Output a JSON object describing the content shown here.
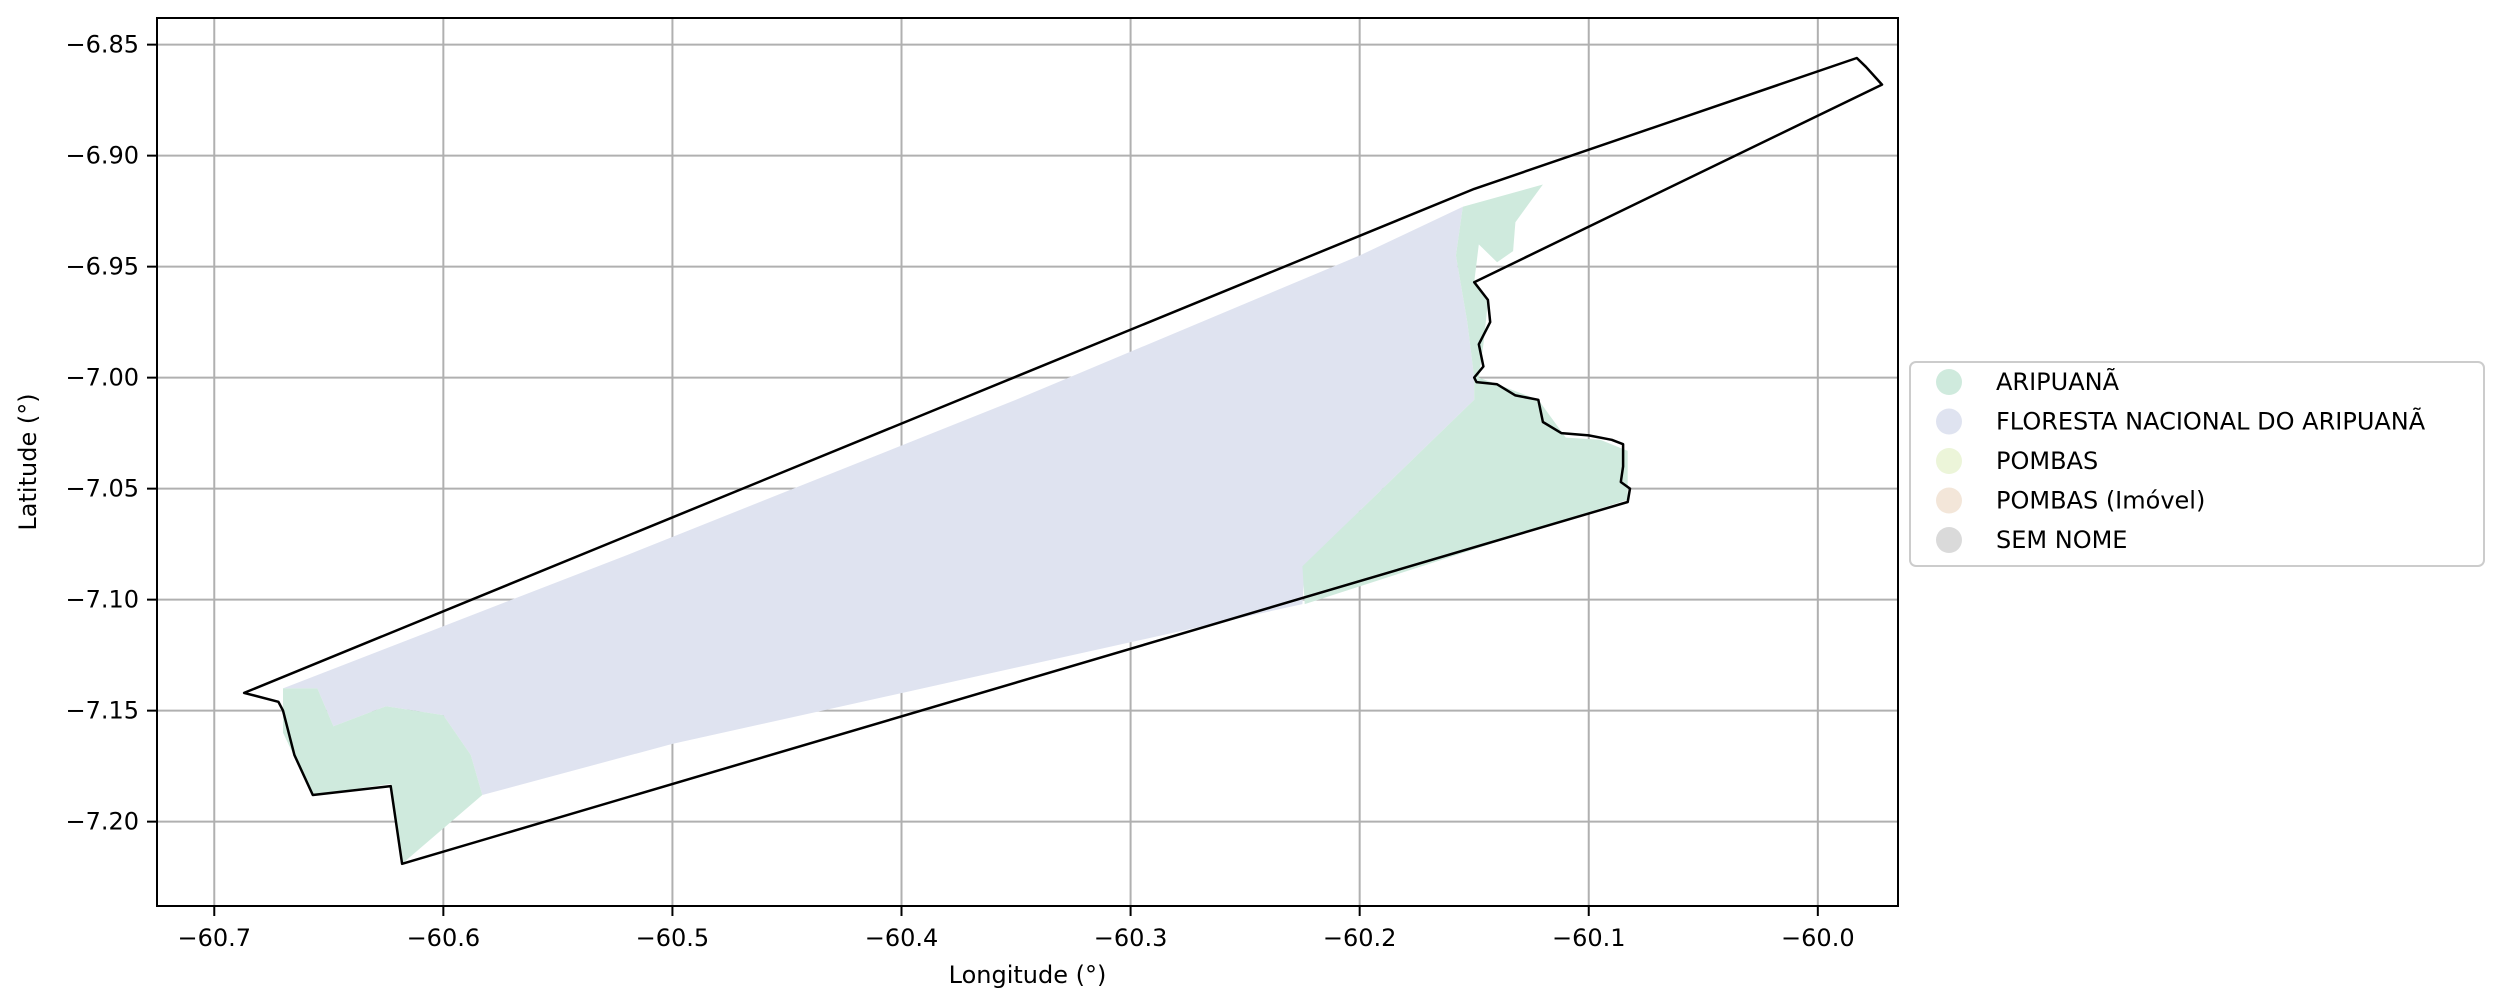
{
  "chart_data": {
    "type": "map",
    "xlabel": "Longitude (°)",
    "ylabel": "Latitude (°)",
    "xlim": [
      -60.725,
      -59.965
    ],
    "ylim": [
      -7.238,
      -6.838
    ],
    "xticks": [
      {
        "value": -60.7,
        "label": "−60.7"
      },
      {
        "value": -60.6,
        "label": "−60.6"
      },
      {
        "value": -60.5,
        "label": "−60.5"
      },
      {
        "value": -60.4,
        "label": "−60.4"
      },
      {
        "value": -60.3,
        "label": "−60.3"
      },
      {
        "value": -60.2,
        "label": "−60.2"
      },
      {
        "value": -60.1,
        "label": "−60.1"
      },
      {
        "value": -60.0,
        "label": "−60.0"
      }
    ],
    "yticks": [
      {
        "value": -6.85,
        "label": "−6.85"
      },
      {
        "value": -6.9,
        "label": "−6.90"
      },
      {
        "value": -6.95,
        "label": "−6.95"
      },
      {
        "value": -7.0,
        "label": "−7.00"
      },
      {
        "value": -7.05,
        "label": "−7.05"
      },
      {
        "value": -7.1,
        "label": "−7.10"
      },
      {
        "value": -7.15,
        "label": "−7.15"
      },
      {
        "value": -7.2,
        "label": "−7.20"
      }
    ],
    "grid": true,
    "legend_position": "right",
    "legend": [
      {
        "label": "ARIPUANÃ",
        "color": "#cfeadd"
      },
      {
        "label": "FLORESTA NACIONAL DO ARIPUANÃ",
        "color": "#dfe3f0"
      },
      {
        "label": "POMBAS",
        "color": "#ecf5d9"
      },
      {
        "label": "POMBAS (Imóvel)",
        "color": "#f3e6d9"
      },
      {
        "label": "SEM NOME",
        "color": "#dadada"
      }
    ],
    "boundary_color": "#000000",
    "layers": [
      {
        "name": "FLORESTA NACIONAL DO ARIPUANÃ",
        "color": "#dfe3f0",
        "coords": [
          [
            -60.67,
            -7.14
          ],
          [
            -60.52,
            -7.08
          ],
          [
            -60.35,
            -7.01
          ],
          [
            -60.2,
            -6.945
          ],
          [
            -60.155,
            -6.923
          ],
          [
            -60.158,
            -6.945
          ],
          [
            -60.153,
            -6.975
          ],
          [
            -60.15,
            -7.0
          ],
          [
            -60.15,
            -7.01
          ],
          [
            -60.2,
            -7.06
          ],
          [
            -60.224,
            -7.085
          ],
          [
            -60.225,
            -7.102
          ],
          [
            -60.5,
            -7.165
          ],
          [
            -60.583,
            -7.188
          ],
          [
            -60.588,
            -7.17
          ],
          [
            -60.6,
            -7.152
          ],
          [
            -60.625,
            -7.148
          ],
          [
            -60.648,
            -7.157
          ],
          [
            -60.655,
            -7.14
          ],
          [
            -60.67,
            -7.14
          ]
        ]
      },
      {
        "name": "ARIPUANÃ",
        "color": "#cfeadd",
        "coords": [
          [
            -60.155,
            -6.923
          ],
          [
            -60.12,
            -6.913
          ],
          [
            -60.125,
            -6.92
          ],
          [
            -60.132,
            -6.93
          ],
          [
            -60.133,
            -6.943
          ],
          [
            -60.14,
            -6.948
          ],
          [
            -60.148,
            -6.94
          ],
          [
            -60.15,
            -6.957
          ],
          [
            -60.144,
            -6.966
          ],
          [
            -60.146,
            -6.985
          ],
          [
            -60.148,
            -7.0
          ],
          [
            -60.14,
            -7.003
          ],
          [
            -60.122,
            -7.01
          ],
          [
            -60.11,
            -7.027
          ],
          [
            -60.095,
            -7.028
          ],
          [
            -60.083,
            -7.033
          ],
          [
            -60.083,
            -7.055
          ],
          [
            -60.224,
            -7.102
          ],
          [
            -60.225,
            -7.085
          ],
          [
            -60.2,
            -7.06
          ],
          [
            -60.15,
            -7.01
          ],
          [
            -60.15,
            -7.0
          ],
          [
            -60.153,
            -6.975
          ],
          [
            -60.158,
            -6.945
          ],
          [
            -60.155,
            -6.923
          ]
        ]
      },
      {
        "name": "ARIPUANÃ",
        "color": "#cfeadd",
        "coords": [
          [
            -60.67,
            -7.14
          ],
          [
            -60.655,
            -7.14
          ],
          [
            -60.648,
            -7.157
          ],
          [
            -60.625,
            -7.148
          ],
          [
            -60.6,
            -7.152
          ],
          [
            -60.588,
            -7.17
          ],
          [
            -60.583,
            -7.188
          ],
          [
            -60.618,
            -7.219
          ],
          [
            -60.623,
            -7.183
          ],
          [
            -60.657,
            -7.188
          ],
          [
            -60.67,
            -7.16
          ],
          [
            -60.67,
            -7.14
          ]
        ]
      }
    ],
    "boundary": [
      [
        -60.687,
        -7.142
      ],
      [
        -60.15,
        -6.915
      ],
      [
        -59.983,
        -6.856
      ],
      [
        -59.979,
        -6.86
      ],
      [
        -59.972,
        -6.868
      ],
      [
        -60.15,
        -6.957
      ],
      [
        -60.144,
        -6.965
      ],
      [
        -60.143,
        -6.975
      ],
      [
        -60.148,
        -6.985
      ],
      [
        -60.146,
        -6.995
      ],
      [
        -60.15,
        -7.0
      ],
      [
        -60.149,
        -7.002
      ],
      [
        -60.14,
        -7.003
      ],
      [
        -60.132,
        -7.008
      ],
      [
        -60.122,
        -7.01
      ],
      [
        -60.12,
        -7.02
      ],
      [
        -60.112,
        -7.025
      ],
      [
        -60.1,
        -7.026
      ],
      [
        -60.09,
        -7.028
      ],
      [
        -60.085,
        -7.03
      ],
      [
        -60.085,
        -7.04
      ],
      [
        -60.086,
        -7.047
      ],
      [
        -60.082,
        -7.05
      ],
      [
        -60.083,
        -7.056
      ],
      [
        -60.618,
        -7.219
      ],
      [
        -60.623,
        -7.184
      ],
      [
        -60.657,
        -7.188
      ],
      [
        -60.665,
        -7.17
      ],
      [
        -60.67,
        -7.15
      ],
      [
        -60.672,
        -7.146
      ]
    ]
  }
}
